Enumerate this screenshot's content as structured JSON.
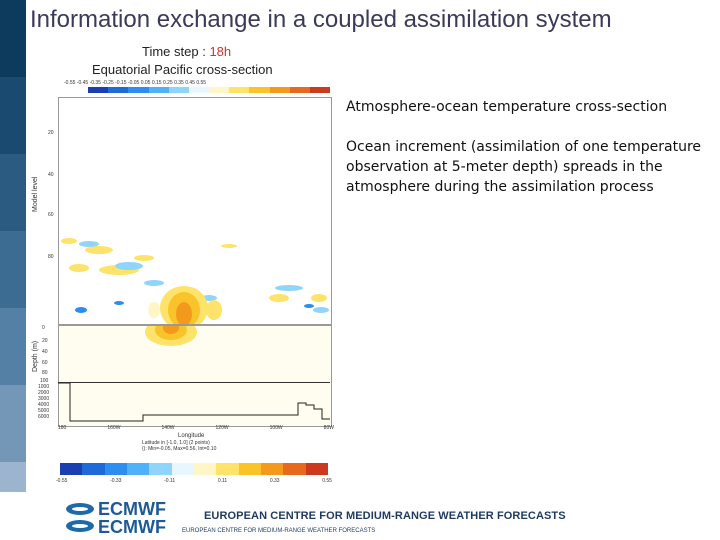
{
  "slide": {
    "title": "Information exchange in a coupled assimilation system"
  },
  "figure": {
    "time_step_label": "Time step :",
    "time_step_value": "18h",
    "subtitle": "Equatorial Pacific cross-section",
    "top_ticks": "-0.55 -0.45 -0.35 -0.25 -0.15 -0.05        0.05  0.15  0.25  0.35  0.45  0.55",
    "y_label_atm": "Model level",
    "y_label_ocean": "Depth (m)",
    "atm_ticks": [
      "20",
      "40",
      "60",
      "80"
    ],
    "ocean_ticks": [
      "0",
      "20",
      "40",
      "60",
      "80",
      "100",
      "1000",
      "2000",
      "3000",
      "4000",
      "5000",
      "6000"
    ],
    "x_ticks": [
      "180",
      "160W",
      "140W",
      "120W",
      "100W",
      "80W"
    ],
    "x_label": "Longitude",
    "stats_line1": "Latitude in [-1.0, 1.0] (2 points)",
    "stats_line2": "(): Min=-0.05, Max=0.56, Int=0.10",
    "bottom_ticks": [
      "-0.55",
      "-0.33",
      "-0.11",
      "0.11",
      "0.33",
      "0.55"
    ],
    "colors": {
      "scale": [
        "#1a3fb0",
        "#1e6ad8",
        "#2c8ef0",
        "#4fb2f8",
        "#8fd4fa",
        "#e8f7fd",
        "#fff6c8",
        "#fde36a",
        "#f9c42a",
        "#f39a1c",
        "#e66a1e",
        "#cc3a1e"
      ]
    }
  },
  "text": {
    "paragraph1": "Atmosphere-ocean temperature cross-section",
    "paragraph2": "Ocean increment (assimilation of one temperature observation at 5-meter depth) spreads in the atmosphere during the assimilation process"
  },
  "footer": {
    "logo_text": "ECMWF",
    "org_name": "EUROPEAN CENTRE FOR MEDIUM-RANGE WEATHER FORECASTS",
    "org_name_small": "EUROPEAN CENTRE FOR MEDIUM-RANGE WEATHER FORECASTS"
  },
  "theme": {
    "strip_colors": [
      "#0d3b5e",
      "#1b4a70",
      "#2c5b82",
      "#3d6c93",
      "#5580a6",
      "#7497b8",
      "#9cb4cd"
    ]
  }
}
